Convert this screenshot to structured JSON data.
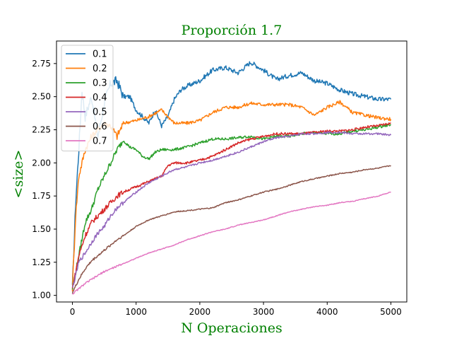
{
  "chart_data": {
    "type": "line",
    "title": "Proporción 1.7",
    "xlabel": "N Operaciones",
    "ylabel": "<size>",
    "label_color": "#008000",
    "xlim": [
      -250,
      5250
    ],
    "ylim": [
      0.95,
      2.92
    ],
    "xticks": [
      0,
      1000,
      2000,
      3000,
      4000,
      5000
    ],
    "xtick_labels": [
      "0",
      "1000",
      "2000",
      "3000",
      "4000",
      "5000"
    ],
    "yticks": [
      1.0,
      1.25,
      1.5,
      1.75,
      2.0,
      2.25,
      2.5,
      2.75
    ],
    "ytick_labels": [
      "1.00",
      "1.25",
      "1.50",
      "1.75",
      "2.00",
      "2.25",
      "2.50",
      "2.75"
    ],
    "grid": false,
    "legend_position": "top-left",
    "series": [
      {
        "name": "0.1",
        "color": "#1f77b4",
        "x": [
          0,
          50,
          100,
          150,
          200,
          300,
          400,
          500,
          600,
          700,
          800,
          900,
          1000,
          1100,
          1200,
          1300,
          1400,
          1500,
          1600,
          1700,
          1800,
          1900,
          2000,
          2200,
          2400,
          2600,
          2800,
          3000,
          3200,
          3400,
          3600,
          3800,
          4000,
          4200,
          4400,
          4600,
          4800,
          5000
        ],
        "y": [
          1.05,
          1.7,
          2.1,
          2.55,
          2.35,
          2.5,
          2.2,
          2.45,
          2.6,
          2.62,
          2.5,
          2.5,
          2.4,
          2.35,
          2.3,
          2.4,
          2.28,
          2.35,
          2.48,
          2.55,
          2.58,
          2.6,
          2.62,
          2.7,
          2.72,
          2.68,
          2.76,
          2.7,
          2.63,
          2.66,
          2.68,
          2.62,
          2.6,
          2.55,
          2.52,
          2.5,
          2.48,
          2.48
        ]
      },
      {
        "name": "0.2",
        "color": "#ff7f0e",
        "x": [
          0,
          50,
          100,
          150,
          200,
          300,
          400,
          500,
          600,
          700,
          800,
          1000,
          1200,
          1400,
          1600,
          1800,
          2000,
          2200,
          2400,
          2600,
          2800,
          3000,
          3200,
          3400,
          3600,
          3800,
          4000,
          4200,
          4400,
          4600,
          4800,
          5000
        ],
        "y": [
          1.05,
          1.6,
          1.9,
          2.0,
          2.1,
          2.2,
          2.25,
          2.3,
          2.28,
          2.2,
          2.3,
          2.32,
          2.35,
          2.4,
          2.3,
          2.3,
          2.32,
          2.38,
          2.42,
          2.42,
          2.45,
          2.44,
          2.44,
          2.44,
          2.42,
          2.36,
          2.42,
          2.46,
          2.38,
          2.36,
          2.34,
          2.33
        ]
      },
      {
        "name": "0.3",
        "color": "#2ca02c",
        "x": [
          0,
          100,
          200,
          300,
          400,
          500,
          600,
          700,
          800,
          900,
          1000,
          1100,
          1200,
          1300,
          1400,
          1600,
          1800,
          2000,
          2200,
          2400,
          2600,
          2800,
          3000,
          3200,
          3400,
          3600,
          3800,
          4000,
          4200,
          4400,
          4600,
          4800,
          5000
        ],
        "y": [
          1.05,
          1.3,
          1.55,
          1.65,
          1.8,
          1.9,
          2.0,
          2.1,
          2.17,
          2.12,
          2.1,
          2.05,
          2.03,
          2.08,
          2.1,
          2.1,
          2.12,
          2.15,
          2.18,
          2.18,
          2.19,
          2.2,
          2.18,
          2.2,
          2.2,
          2.22,
          2.23,
          2.22,
          2.22,
          2.24,
          2.25,
          2.27,
          2.29
        ]
      },
      {
        "name": "0.4",
        "color": "#d62728",
        "x": [
          0,
          100,
          200,
          300,
          400,
          500,
          600,
          700,
          800,
          1000,
          1200,
          1400,
          1500,
          1600,
          1800,
          2000,
          2200,
          2400,
          2600,
          2800,
          3000,
          3200,
          3400,
          3600,
          3800,
          4000,
          4200,
          4400,
          4600,
          4800,
          5000
        ],
        "y": [
          1.05,
          1.3,
          1.45,
          1.55,
          1.6,
          1.65,
          1.7,
          1.75,
          1.78,
          1.82,
          1.86,
          1.9,
          1.98,
          2.0,
          2.0,
          2.02,
          2.05,
          2.1,
          2.15,
          2.18,
          2.2,
          2.22,
          2.22,
          2.22,
          2.23,
          2.24,
          2.24,
          2.25,
          2.27,
          2.28,
          2.3
        ]
      },
      {
        "name": "0.5",
        "color": "#9467bd",
        "x": [
          0,
          100,
          200,
          300,
          400,
          500,
          600,
          700,
          800,
          1000,
          1200,
          1400,
          1600,
          1800,
          2000,
          2200,
          2400,
          2600,
          2800,
          3000,
          3200,
          3400,
          3600,
          3800,
          4000,
          4200,
          4400,
          4600,
          4800,
          5000
        ],
        "y": [
          1.05,
          1.25,
          1.32,
          1.4,
          1.47,
          1.52,
          1.6,
          1.66,
          1.7,
          1.78,
          1.85,
          1.9,
          1.95,
          1.97,
          2.0,
          2.02,
          2.05,
          2.08,
          2.12,
          2.16,
          2.19,
          2.2,
          2.22,
          2.22,
          2.23,
          2.23,
          2.22,
          2.22,
          2.22,
          2.21
        ]
      },
      {
        "name": "0.6",
        "color": "#8c564b",
        "x": [
          0,
          100,
          200,
          300,
          400,
          500,
          600,
          700,
          800,
          1000,
          1200,
          1400,
          1600,
          1800,
          2000,
          2200,
          2400,
          2600,
          2800,
          3000,
          3200,
          3400,
          3600,
          3800,
          4000,
          4200,
          4400,
          4600,
          4800,
          5000
        ],
        "y": [
          1.02,
          1.12,
          1.2,
          1.26,
          1.3,
          1.34,
          1.38,
          1.42,
          1.45,
          1.52,
          1.57,
          1.6,
          1.63,
          1.64,
          1.65,
          1.66,
          1.7,
          1.72,
          1.75,
          1.78,
          1.8,
          1.83,
          1.86,
          1.88,
          1.9,
          1.92,
          1.93,
          1.95,
          1.96,
          1.98
        ]
      },
      {
        "name": "0.7",
        "color": "#e377c2",
        "x": [
          0,
          100,
          200,
          300,
          400,
          500,
          600,
          800,
          1000,
          1200,
          1400,
          1600,
          1800,
          2000,
          2200,
          2400,
          2600,
          2800,
          3000,
          3200,
          3400,
          3600,
          3800,
          4000,
          4200,
          4400,
          4600,
          4800,
          5000
        ],
        "y": [
          1.01,
          1.05,
          1.09,
          1.12,
          1.15,
          1.18,
          1.2,
          1.24,
          1.28,
          1.32,
          1.35,
          1.38,
          1.42,
          1.45,
          1.48,
          1.5,
          1.53,
          1.55,
          1.57,
          1.6,
          1.63,
          1.65,
          1.67,
          1.68,
          1.7,
          1.71,
          1.73,
          1.75,
          1.78
        ]
      }
    ]
  }
}
